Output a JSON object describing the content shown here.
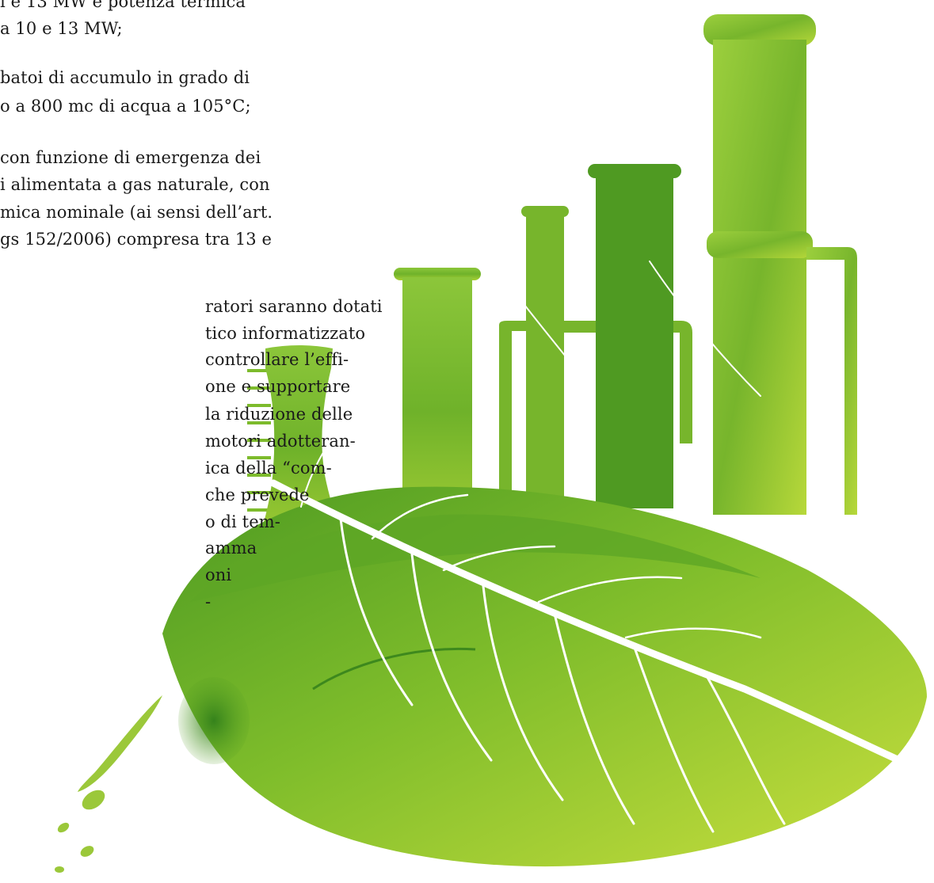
{
  "article": {
    "lines": [
      "i e 13 MW e potenza termica",
      "a 10 e 13 MW;",
      "batoi di accumulo in grado di",
      "o a 800 mc di acqua a 105°C;",
      "con funzione di emergenza dei",
      "i alimentata a gas naturale, con",
      "mica nominale (ai sensi dell’art.",
      "gs 152/2006) compresa tra 13 e",
      "ratori saranno dotati",
      "tico informatizzato",
      "controllare l’effi-",
      "one e supportare",
      "la riduzione delle",
      "motori adotteran-",
      "ica della “com-",
      "che prevede",
      "o di tem-",
      "amma",
      "oni",
      "-"
    ]
  },
  "illustration": {
    "subject": "green watercolor leaf with industrial plant chimneys and gauge scale",
    "colors": {
      "dark_green": "#3f8f1f",
      "mid_green": "#78b82a",
      "light_green": "#b9d83a",
      "yellow_green": "#d9e445",
      "vein": "#ffffff"
    }
  }
}
